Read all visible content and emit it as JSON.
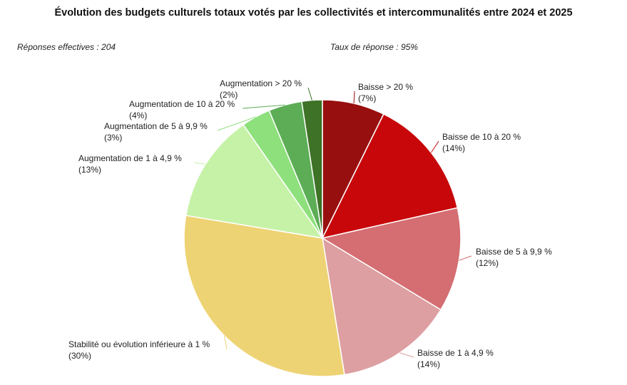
{
  "header": {
    "title": "Évolution des budgets culturels totaux votés par les collectivités et intercommunalités entre 2024 et 2025",
    "responses": "Réponses effectives : 204",
    "rate": "Taux de réponse : 95%"
  },
  "chart_data": {
    "type": "pie",
    "start_angle": "12 o'clock",
    "direction": "clockwise",
    "slices": [
      {
        "label": "Baisse > 20 %",
        "percent_label": "(7%)",
        "value": 7.3,
        "color": "#980f0f"
      },
      {
        "label": "Baisse de 10 à 20 %",
        "percent_label": "(14%)",
        "value": 14.2,
        "color": "#c8070a"
      },
      {
        "label": "Baisse de 5 à 9,9 %",
        "percent_label": "(12%)",
        "value": 12.2,
        "color": "#d46e72"
      },
      {
        "label": "Baisse de 1 à 4,9 %",
        "percent_label": "(14%)",
        "value": 13.8,
        "color": "#dd9fa1"
      },
      {
        "label": "Stabilité ou évolution inférieure à 1 %",
        "percent_label": "(30%)",
        "value": 30.2,
        "color": "#eed374"
      },
      {
        "label": "Augmentation de 1 à 4,9 %",
        "percent_label": "(13%)",
        "value": 12.7,
        "color": "#c6f2a8"
      },
      {
        "label": "Augmentation de 5 à 9,9 %",
        "percent_label": "(3%)",
        "value": 3.4,
        "color": "#8ee07c"
      },
      {
        "label": "Augmentation de 10 à 20 %",
        "percent_label": "(4%)",
        "value": 3.9,
        "color": "#5cad55"
      },
      {
        "label": "Augmentation > 20 %",
        "percent_label": "(2%)",
        "value": 2.4,
        "color": "#3e7227"
      }
    ]
  }
}
